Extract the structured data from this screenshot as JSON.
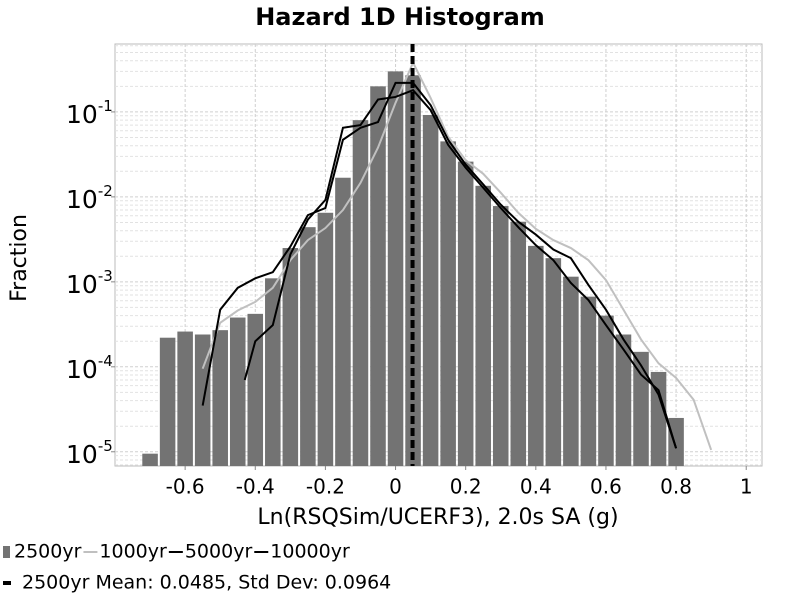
{
  "chart_data": {
    "type": "histogram",
    "title": "Hazard 1D Histogram",
    "x_label": "Ln(RSQSim/UCERF3), 2.0s SA (g)",
    "y_label": "Fraction",
    "xlim": [
      -0.8,
      1.045
    ],
    "ylim": [
      6.8e-06,
      0.63
    ],
    "y_log": true,
    "grid": true,
    "xticks": [
      -0.6,
      -0.4,
      -0.2,
      0,
      0.2,
      0.4,
      0.6,
      0.8,
      1
    ],
    "yticks": [
      {
        "value": 1e-05,
        "label": "10",
        "exponent": "-5"
      },
      {
        "value": 0.0001,
        "label": "10",
        "exponent": "-4"
      },
      {
        "value": 0.001,
        "label": "10",
        "exponent": "-3"
      },
      {
        "value": 0.01,
        "label": "10",
        "exponent": "-2"
      },
      {
        "value": 0.1,
        "label": "10",
        "exponent": "-1"
      }
    ],
    "histogram": {
      "name": "2500yr",
      "color": "#737373",
      "bins": [
        -0.725,
        -0.675,
        -0.625,
        -0.575,
        -0.525,
        -0.475,
        -0.425,
        -0.375,
        -0.325,
        -0.275,
        -0.225,
        -0.175,
        -0.125,
        -0.075,
        -0.025,
        0.025,
        0.075,
        0.125,
        0.175,
        0.225,
        0.275,
        0.325,
        0.375,
        0.425,
        0.475,
        0.525,
        0.575,
        0.625,
        0.675,
        0.725,
        0.775,
        0.825
      ],
      "values": [
        9.5e-06,
        0.00022,
        0.00026,
        0.00024,
        0.00027,
        0.00038,
        0.00042,
        0.0011,
        0.0025,
        0.0044,
        0.0065,
        0.0168,
        0.08,
        0.2,
        0.3,
        0.27,
        0.092,
        0.045,
        0.026,
        0.0135,
        0.0078,
        0.0051,
        0.00265,
        0.0019,
        0.00115,
        0.00067,
        0.0004,
        0.00024,
        0.00015,
        8.7e-05,
        2.5e-05
      ]
    },
    "series": [
      {
        "name": "1000yr",
        "color": "#c0c0c0",
        "x": [
          -0.55,
          -0.5,
          -0.45,
          -0.4,
          -0.35,
          -0.3,
          -0.25,
          -0.2,
          -0.15,
          -0.1,
          -0.05,
          0,
          0.05,
          0.1,
          0.15,
          0.2,
          0.25,
          0.3,
          0.35,
          0.4,
          0.45,
          0.5,
          0.55,
          0.6,
          0.65,
          0.7,
          0.75,
          0.8,
          0.85,
          0.9
        ],
        "values": [
          9.5e-05,
          0.00033,
          0.00046,
          0.00058,
          0.00085,
          0.0018,
          0.0031,
          0.0043,
          0.007,
          0.0146,
          0.038,
          0.128,
          0.38,
          0.146,
          0.051,
          0.027,
          0.0187,
          0.0112,
          0.0065,
          0.0042,
          0.0031,
          0.0025,
          0.0018,
          0.00105,
          0.00047,
          0.00021,
          0.00011,
          7.4e-05,
          4.1e-05,
          1.05e-05
        ]
      },
      {
        "name": "5000yr",
        "color": "#000000",
        "x": [
          -0.55,
          -0.5,
          -0.45,
          -0.4,
          -0.35,
          -0.3,
          -0.25,
          -0.2,
          -0.15,
          -0.1,
          -0.05,
          0,
          0.05,
          0.1,
          0.15,
          0.2,
          0.25,
          0.3,
          0.35,
          0.4,
          0.45,
          0.5,
          0.55,
          0.6,
          0.65,
          0.7,
          0.75,
          0.8
        ],
        "values": [
          3.5e-05,
          0.00047,
          0.00085,
          0.0011,
          0.0013,
          0.0026,
          0.0061,
          0.0074,
          0.047,
          0.065,
          0.076,
          0.22,
          0.22,
          0.12,
          0.047,
          0.024,
          0.014,
          0.0081,
          0.0051,
          0.0036,
          0.0024,
          0.0019,
          0.00092,
          0.00047,
          0.00021,
          0.000104,
          4.7e-05,
          1.1e-05
        ]
      },
      {
        "name": "10000yr",
        "color": "#000000",
        "x": [
          -0.43,
          -0.4,
          -0.35,
          -0.3,
          -0.25,
          -0.2,
          -0.15,
          -0.1,
          -0.05,
          0,
          0.05,
          0.1,
          0.15,
          0.2,
          0.25,
          0.3,
          0.35,
          0.4,
          0.45,
          0.5,
          0.55,
          0.6,
          0.65,
          0.7,
          0.75,
          0.8
        ],
        "values": [
          7e-05,
          0.0002,
          0.00031,
          0.0021,
          0.0054,
          0.0092,
          0.065,
          0.07,
          0.14,
          0.15,
          0.18,
          0.105,
          0.041,
          0.022,
          0.0128,
          0.0074,
          0.0044,
          0.0027,
          0.0018,
          0.00097,
          0.00061,
          0.00031,
          0.00016,
          8.1e-05,
          5.3e-05,
          1.1e-05
        ]
      }
    ],
    "mean_line": {
      "x": 0.0485,
      "color": "#000000",
      "label": "2500yr Mean: 0.0485, Std Dev: 0.0964"
    }
  }
}
